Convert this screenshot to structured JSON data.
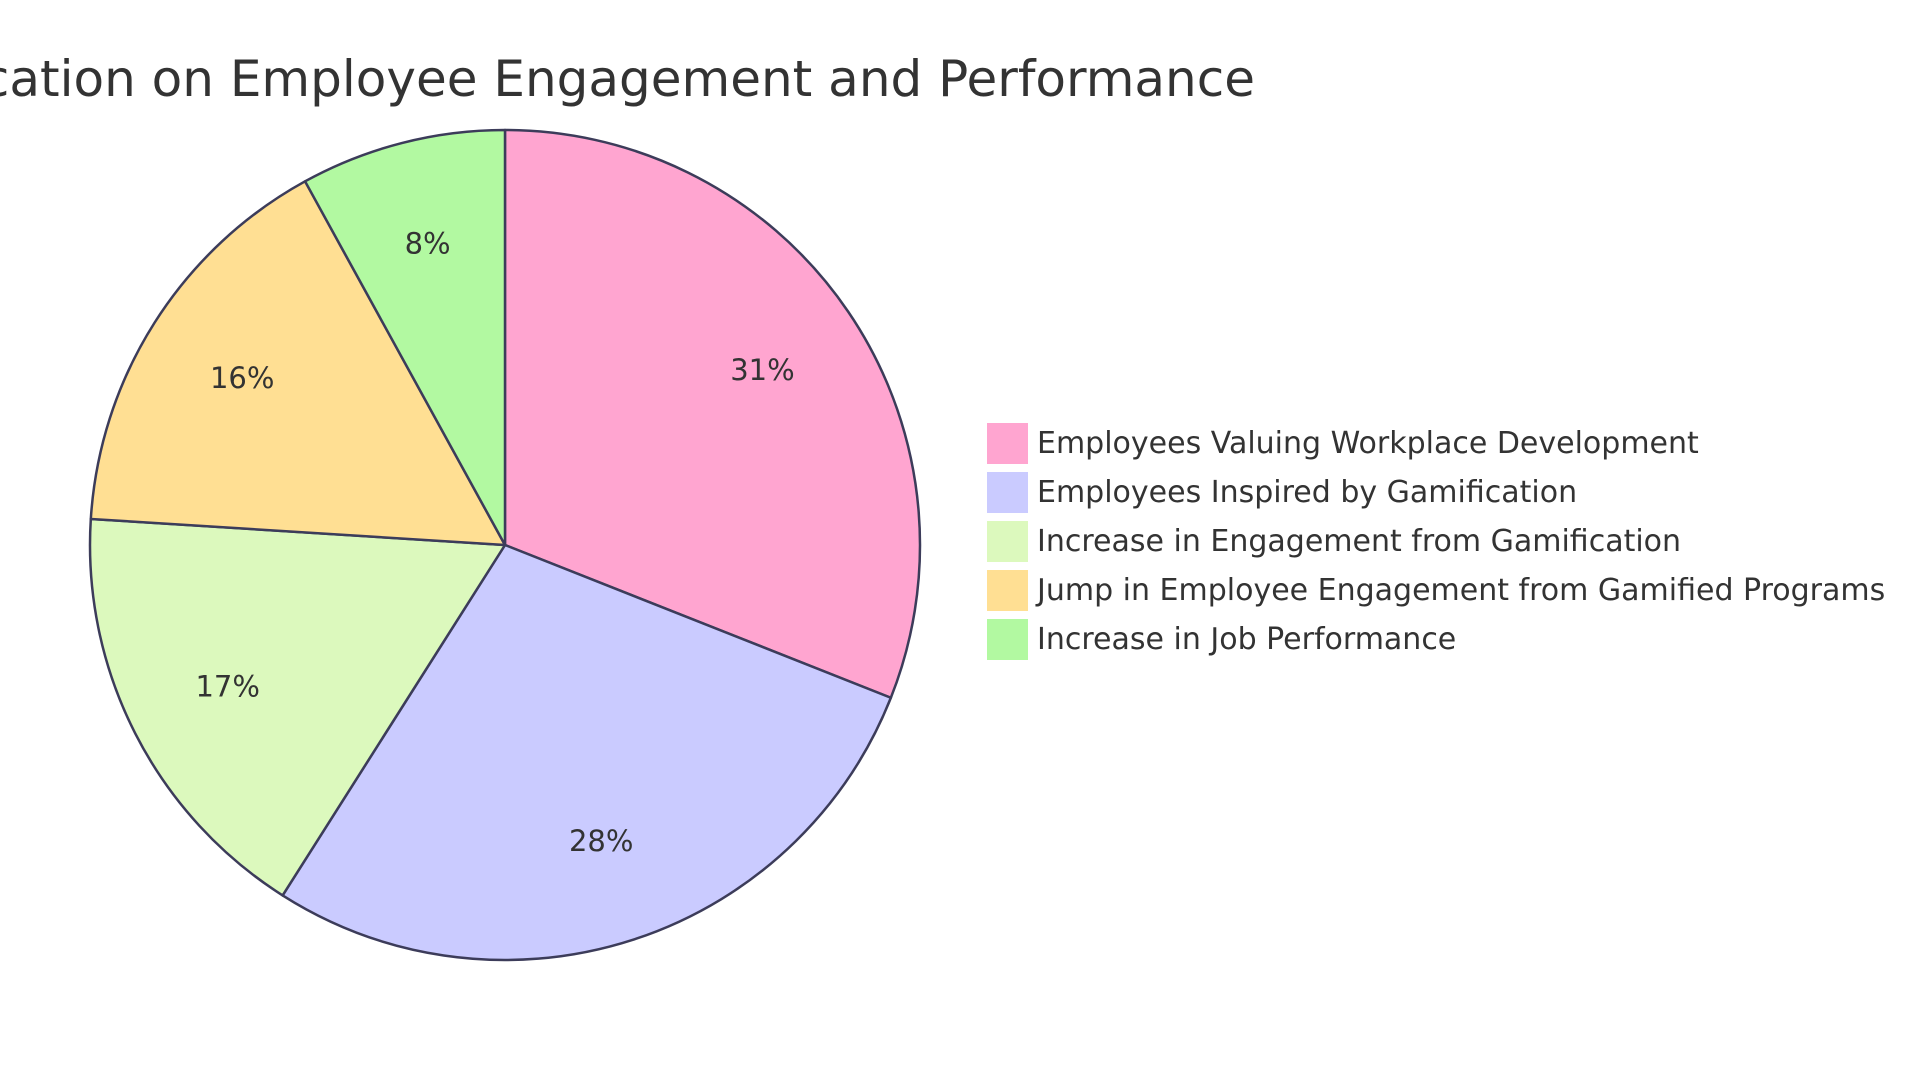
{
  "chart_data": {
    "type": "pie",
    "title": "Impact of Gamification on Employee Engagement and Performance",
    "legend_position": "right",
    "slices": [
      {
        "label": "Employees Valuing Workplace Development",
        "value": 31,
        "display": "31%",
        "color": "#FFA5D0"
      },
      {
        "label": "Employees Inspired by Gamification",
        "value": 28,
        "display": "28%",
        "color": "#CACBFF"
      },
      {
        "label": "Increase in Engagement from Gamification",
        "value": 17,
        "display": "17%",
        "color": "#DCF9BD"
      },
      {
        "label": "Jump in Employee Engagement from Gamified Programs",
        "value": 16,
        "display": "16%",
        "color": "#FFDF93"
      },
      {
        "label": "Increase in Job Performance",
        "value": 8,
        "display": "8%",
        "color": "#B2F9A1"
      }
    ]
  }
}
